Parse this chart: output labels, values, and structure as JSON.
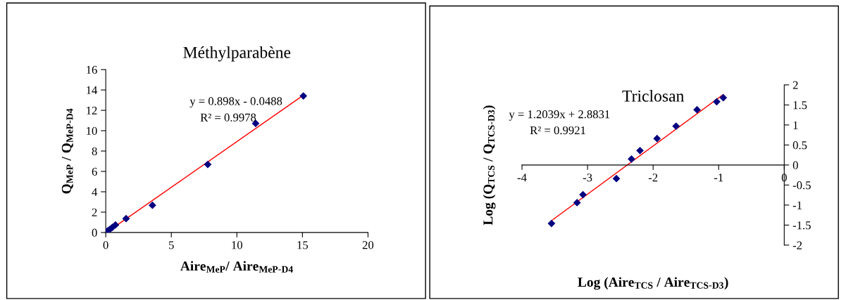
{
  "chart_data": [
    {
      "type": "scatter",
      "title": "Méthylparabène",
      "xlabel": "Aire$_{MeP}$/ Aire$_{MeP-D4}$",
      "ylabel": "Q$_{MeP}$ / Q$_{MeP-D4}$",
      "xlim": [
        0,
        20
      ],
      "ylim": [
        0,
        16
      ],
      "xticks": [
        0,
        5,
        10,
        15,
        20
      ],
      "yticks": [
        0,
        2,
        4,
        6,
        8,
        10,
        12,
        14,
        16
      ],
      "grid": false,
      "legend": false,
      "annotations": [
        "y = 0.898x - 0.0488",
        "R² = 0.9978"
      ],
      "series": [
        {
          "marker": "diamond",
          "color": "#000080",
          "x": [
            0,
            0.14,
            0.32,
            0.5,
            0.74,
            1.55,
            3.56,
            7.78,
            11.43,
            15.07
          ],
          "values": [
            0,
            0.16,
            0.32,
            0.5,
            0.74,
            1.36,
            2.67,
            6.68,
            10.71,
            13.41
          ]
        },
        {
          "type": "line",
          "color": "#ff0000",
          "x": [
            0.06,
            15.07
          ],
          "values": [
            0,
            13.48
          ]
        }
      ]
    },
    {
      "type": "scatter",
      "title": "Triclosan",
      "xlabel": "Log (Aire$_{TCS}$ / Aire$_{TCS-D3}$)",
      "ylabel": "Log (Q$_{TCS}$ / Q$_{TCS-D3}$)",
      "xlim": [
        -4,
        0
      ],
      "ylim": [
        -2,
        2
      ],
      "xticks": [
        -4,
        -3,
        -2,
        -1,
        0
      ],
      "yticks": [
        -2,
        -1.5,
        -1,
        -0.5,
        0,
        0.5,
        1,
        1.5,
        2
      ],
      "grid": false,
      "legend": false,
      "annotations": [
        "y = 1.2039x + 2.8831",
        "R² = 0.9921"
      ],
      "series": [
        {
          "marker": "diamond",
          "color": "#000080",
          "x": [
            -3.55,
            -3.16,
            -3.07,
            -2.56,
            -2.33,
            -2.2,
            -1.94,
            -1.65,
            -1.33,
            -1.03,
            -0.93
          ],
          "values": [
            -1.46,
            -0.94,
            -0.74,
            -0.34,
            0.15,
            0.36,
            0.66,
            0.97,
            1.38,
            1.58,
            1.68
          ]
        },
        {
          "type": "line",
          "color": "#ff0000",
          "x": [
            -3.55,
            -0.93
          ],
          "values": [
            -1.39,
            1.76
          ]
        }
      ]
    }
  ]
}
